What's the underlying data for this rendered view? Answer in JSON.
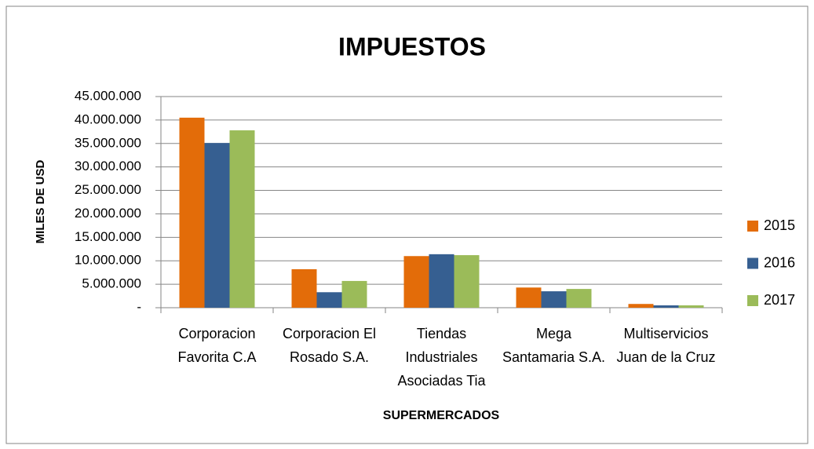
{
  "chart_data": {
    "type": "bar",
    "title": "IMPUESTOS",
    "x_label": "SUPERMERCADOS",
    "y_label": "MILES DE USD",
    "categories": [
      "Corporacion Favorita C.A",
      "Corporacion El Rosado S.A.",
      "Tiendas Industriales Asociadas Tia",
      "Mega Santamaria S.A.",
      "Multiservicios Juan de la Cruz"
    ],
    "series": [
      {
        "name": "2015",
        "color": "#e36c09",
        "values": [
          40500000,
          8200000,
          11000000,
          4300000,
          800000
        ]
      },
      {
        "name": "2016",
        "color": "#365f91",
        "values": [
          35100000,
          3300000,
          11400000,
          3500000,
          500000
        ]
      },
      {
        "name": "2017",
        "color": "#9bbb59",
        "values": [
          37800000,
          5700000,
          11200000,
          4000000,
          500000
        ]
      }
    ],
    "ylim": [
      0,
      45000000
    ],
    "yticks": [
      {
        "value": 0,
        "label": "-"
      },
      {
        "value": 5000000,
        "label": "5.000.000"
      },
      {
        "value": 10000000,
        "label": "10.000.000"
      },
      {
        "value": 15000000,
        "label": "15.000.000"
      },
      {
        "value": 20000000,
        "label": "20.000.000"
      },
      {
        "value": 25000000,
        "label": "25.000.000"
      },
      {
        "value": 30000000,
        "label": "30.000.000"
      },
      {
        "value": 35000000,
        "label": "35.000.000"
      },
      {
        "value": 40000000,
        "label": "40.000.000"
      },
      {
        "value": 45000000,
        "label": "45.000.000"
      }
    ],
    "grid": true,
    "legend": "right"
  }
}
